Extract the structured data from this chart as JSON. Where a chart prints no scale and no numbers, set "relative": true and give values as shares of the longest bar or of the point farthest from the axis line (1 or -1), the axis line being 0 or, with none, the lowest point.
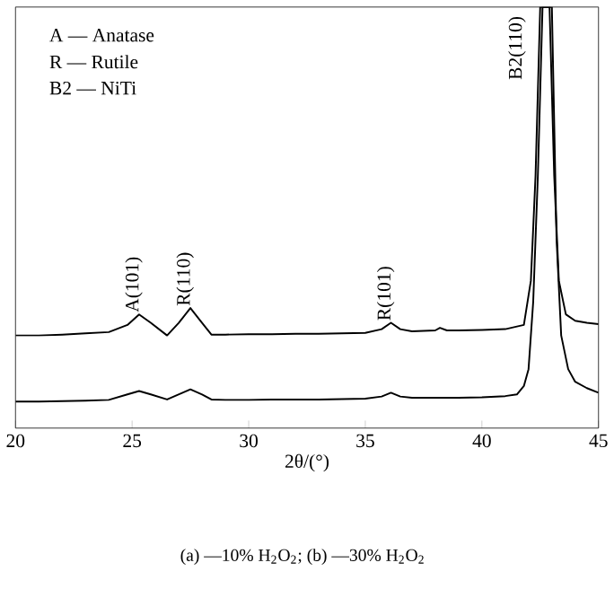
{
  "chart_data": {
    "type": "line",
    "relative": true,
    "xlabel": "2θ/(°)",
    "xlim": [
      20,
      45
    ],
    "xticks": [
      20,
      25,
      30,
      35,
      40,
      45
    ],
    "grid": false,
    "marker": "none",
    "line_style": "solid",
    "series": [
      {
        "color": "#000000",
        "x": [
          20,
          21,
          22,
          23,
          24,
          24.8,
          25.3,
          25.8,
          26.5,
          27,
          27.5,
          28,
          28.4,
          29,
          30,
          31,
          32,
          33,
          34,
          35,
          35.7,
          36.1,
          36.5,
          37,
          38,
          38.2,
          38.5,
          39,
          40,
          41,
          41.8,
          42.1,
          42.3,
          42.5,
          42.9,
          43.1,
          43.3,
          43.6,
          44,
          44.5,
          45
        ],
        "values": [
          0.22,
          0.22,
          0.222,
          0.225,
          0.228,
          0.245,
          0.27,
          0.25,
          0.22,
          0.25,
          0.285,
          0.25,
          0.222,
          0.222,
          0.223,
          0.223,
          0.224,
          0.224,
          0.225,
          0.226,
          0.235,
          0.25,
          0.235,
          0.23,
          0.232,
          0.238,
          0.232,
          0.232,
          0.233,
          0.235,
          0.245,
          0.35,
          0.6,
          1,
          1,
          0.6,
          0.35,
          0.27,
          0.255,
          0.25,
          0.247
        ]
      },
      {
        "color": "#000000",
        "x": [
          20,
          21,
          22,
          23,
          24,
          24.8,
          25.3,
          25.8,
          26.5,
          27,
          27.5,
          28,
          28.4,
          29,
          30,
          31,
          32,
          33,
          34,
          35,
          35.7,
          36.1,
          36.5,
          37,
          38,
          39,
          40,
          41,
          41.5,
          41.8,
          42,
          42.2,
          42.4,
          42.6,
          43,
          43.2,
          43.4,
          43.7,
          44,
          44.5,
          45
        ],
        "values": [
          0.063,
          0.063,
          0.064,
          0.065,
          0.067,
          0.08,
          0.088,
          0.08,
          0.068,
          0.08,
          0.092,
          0.08,
          0.068,
          0.067,
          0.067,
          0.068,
          0.068,
          0.068,
          0.069,
          0.07,
          0.075,
          0.084,
          0.075,
          0.072,
          0.072,
          0.072,
          0.073,
          0.076,
          0.08,
          0.1,
          0.14,
          0.3,
          0.6,
          1,
          1,
          0.45,
          0.22,
          0.14,
          0.11,
          0.095,
          0.084
        ]
      }
    ],
    "annotations": [
      "A — Anatase",
      "R — Rutile",
      "B2 — NiTi",
      {
        "text": "A(101)",
        "x": 25.3,
        "y": 0.27
      },
      {
        "text": "R(110)",
        "x": 27.5,
        "y": 0.285
      },
      {
        "text": "R(101)",
        "x": 36.1,
        "y": 0.25
      },
      {
        "text": "B2(110)",
        "x": 42.5,
        "y": 1
      },
      "(a) —10% H$_{2}$O$_{2}$; (b) —30% H$_{2}$O$_{2}$"
    ]
  }
}
